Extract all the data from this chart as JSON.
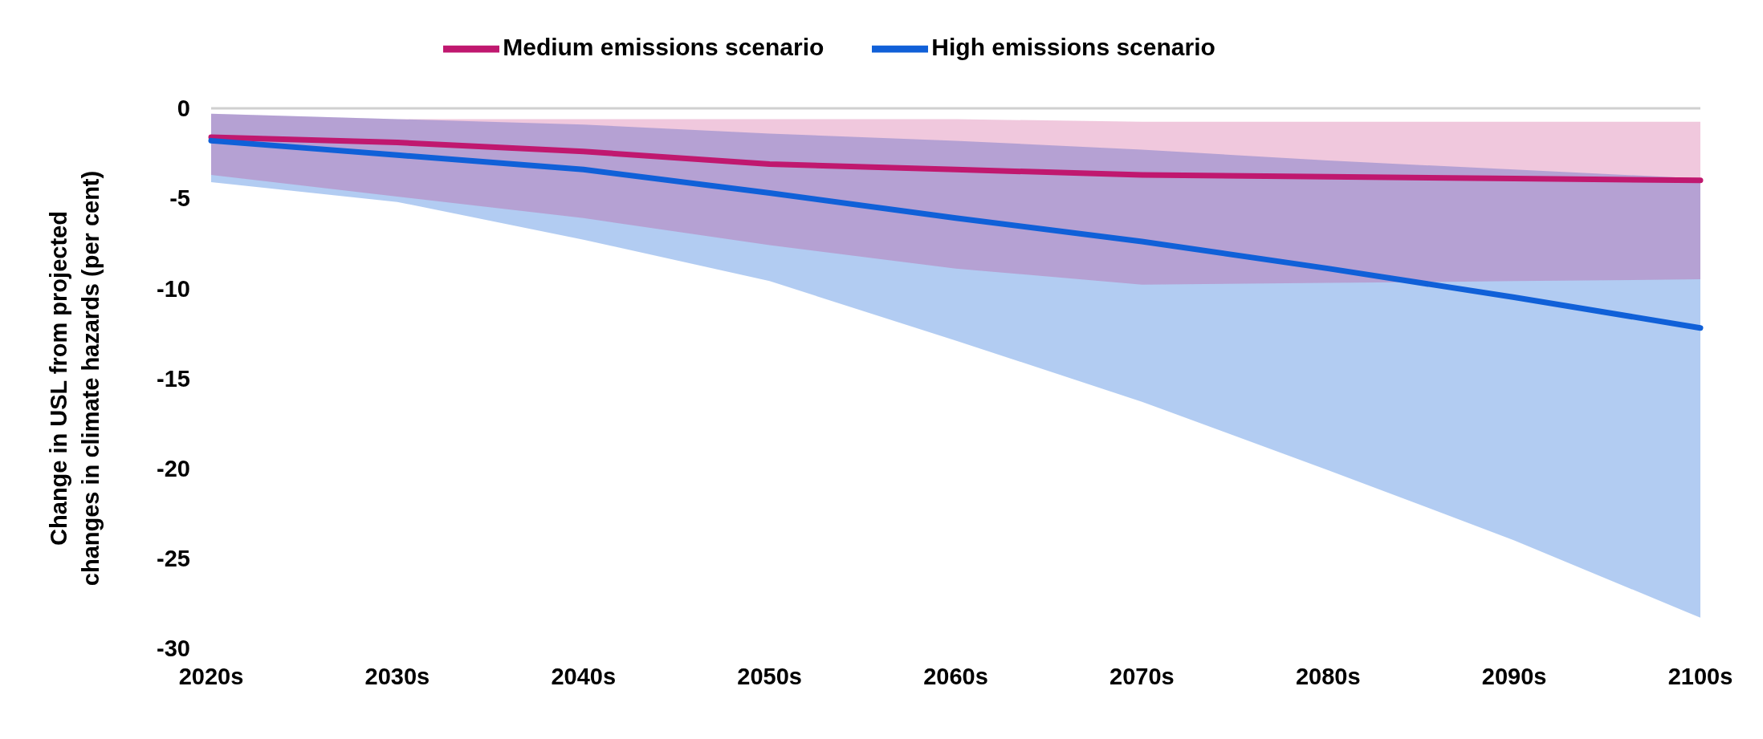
{
  "chart_data": {
    "type": "line",
    "ylabel": "Change in USL from projected changes in climate hazards (per cent)",
    "categories": [
      "2020s",
      "2030s",
      "2040s",
      "2050s",
      "2060s",
      "2070s",
      "2080s",
      "2090s",
      "2100s"
    ],
    "series": [
      {
        "name": "Medium emissions scenario",
        "color": "#c0186f",
        "values": [
          -1.6,
          -1.9,
          -2.4,
          -3.1,
          -3.4,
          -3.7,
          -3.8,
          -3.9,
          -4.0
        ],
        "upper": [
          -0.3,
          -0.6,
          -0.6,
          -0.6,
          -0.6,
          -0.75,
          -0.75,
          -0.75,
          -0.75
        ],
        "lower": [
          -3.7,
          -4.9,
          -6.1,
          -7.6,
          -8.9,
          -9.8,
          -9.7,
          -9.6,
          -9.5
        ]
      },
      {
        "name": "High emissions scenario",
        "color": "#1060d8",
        "values": [
          -1.8,
          -2.6,
          -3.4,
          -4.7,
          -6.1,
          -7.4,
          -8.9,
          -10.5,
          -12.2
        ],
        "upper": [
          -0.3,
          -0.6,
          -0.9,
          -1.4,
          -1.8,
          -2.3,
          -2.9,
          -3.4,
          -3.9
        ],
        "lower": [
          -4.1,
          -5.2,
          -7.3,
          -9.6,
          -12.9,
          -16.3,
          -20.1,
          -24.0,
          -28.3
        ]
      }
    ],
    "ylim": [
      -30,
      0
    ],
    "yticks": [
      0,
      -5,
      -10,
      -15,
      -20,
      -25,
      -30
    ],
    "grid": false,
    "legend": "top",
    "marker": "none",
    "line_style": "solid"
  }
}
